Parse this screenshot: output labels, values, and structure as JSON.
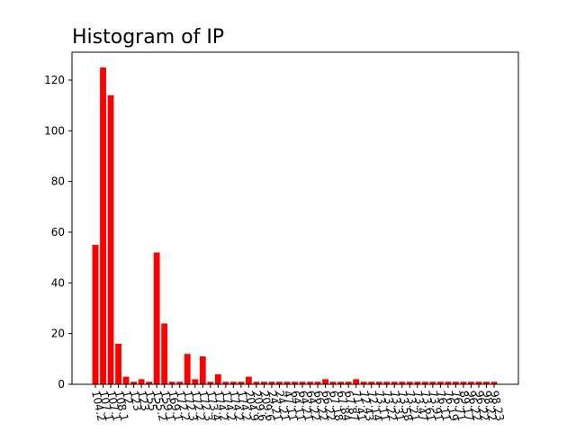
{
  "chart_data": {
    "type": "bar",
    "title": "Histogram of IP",
    "xlabel": "",
    "ylabel": "",
    "ylim": [
      0,
      131
    ],
    "yticks": [
      0,
      20,
      40,
      60,
      80,
      100,
      120
    ],
    "grid": false,
    "legend": "none",
    "bar_color": "#ff0000",
    "categories": [
      "104.2",
      "107.1",
      "107.1",
      "108.1",
      "12",
      "123",
      "123",
      "155",
      "155.2",
      "159.1",
      "169.1",
      "172.2",
      "172.3",
      "172.2",
      "172.3",
      "173.4",
      "174.2",
      "174.2",
      "174.2",
      "174.2",
      "204.9",
      "209.6",
      "209.6",
      "24.21",
      "24.21",
      "47.11",
      "64.11",
      "64.21",
      "64.22",
      "66.22",
      "66.22",
      "67.18",
      "67.84",
      "67.87",
      "71.41",
      "72.43",
      "72.14",
      "73.11",
      "73.22",
      "73.31",
      "73.58",
      "73.21",
      "73.47",
      "73.61",
      "73.91",
      "76.11",
      "76.19",
      "76.71",
      "89.17",
      "96.22",
      "96.22",
      "98.22",
      "98.23"
    ],
    "values": [
      55,
      125,
      114,
      16,
      3,
      1,
      2,
      1,
      52,
      24,
      1,
      1,
      12,
      2,
      11,
      1,
      4,
      1,
      1,
      1,
      3,
      1,
      1,
      1,
      1,
      1,
      1,
      1,
      1,
      1,
      2,
      1,
      1,
      1,
      2,
      1,
      1,
      1,
      1,
      1,
      1,
      1,
      1,
      1,
      1,
      1,
      1,
      1,
      1,
      1,
      1,
      1,
      1
    ]
  }
}
